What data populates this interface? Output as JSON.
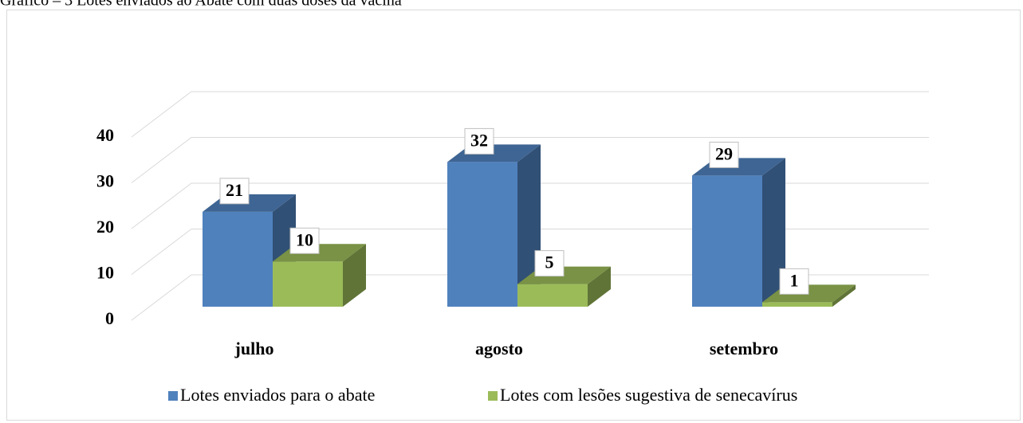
{
  "chart_data": {
    "type": "bar3d",
    "title": "Gráfico – 3 Lotes enviados ao Abate com duas doses da vacina",
    "categories": [
      "julho",
      "agosto",
      "setembro"
    ],
    "series": [
      {
        "name": "Lotes enviados para o abate",
        "color": "#4f81bd",
        "values": [
          21,
          32,
          29
        ]
      },
      {
        "name": "Lotes com lesões sugestiva de senecavírus",
        "color": "#9bbb59",
        "values": [
          10,
          5,
          1
        ]
      }
    ],
    "ylim": [
      0,
      40
    ],
    "yticks": [
      0,
      10,
      20,
      30,
      40
    ],
    "grid": true,
    "legend": "bottom"
  }
}
